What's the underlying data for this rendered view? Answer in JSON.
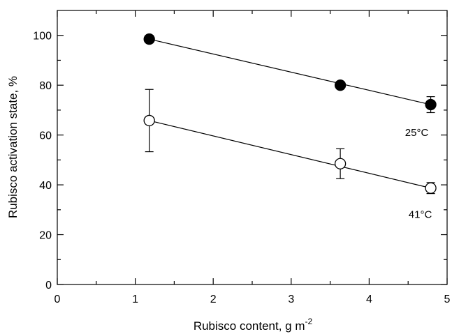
{
  "chart_data": {
    "type": "scatter",
    "title": "",
    "xlabel": "Rubisco content, g m",
    "xlabel_superscript": "-2",
    "ylabel": "Rubisco activation state, %",
    "xlim": [
      0,
      5
    ],
    "ylim": [
      0,
      110
    ],
    "x_ticks": [
      0,
      1,
      2,
      3,
      4,
      5
    ],
    "x_tick_labels": [
      "0",
      "1",
      "2",
      "3",
      "4",
      "5"
    ],
    "y_ticks": [
      0,
      20,
      40,
      60,
      80,
      100
    ],
    "y_tick_labels": [
      "0",
      "20",
      "40",
      "60",
      "80",
      "100"
    ],
    "grid": false,
    "series": [
      {
        "name": "25°C",
        "marker": "filled-circle",
        "color": "#000000",
        "x": [
          1.18,
          3.63,
          4.79
        ],
        "y": [
          98.5,
          80.0,
          72.2
        ],
        "error": [
          1.5,
          0,
          3.2
        ],
        "fit_line": [
          [
            1.18,
            98.5
          ],
          [
            4.79,
            72.2
          ]
        ]
      },
      {
        "name": "41°C",
        "marker": "open-circle",
        "color": "#000000",
        "x": [
          1.18,
          3.63,
          4.79
        ],
        "y": [
          65.8,
          48.5,
          38.7
        ],
        "error": [
          12.5,
          6.0,
          2.2
        ],
        "fit_line": [
          [
            1.18,
            65.8
          ],
          [
            4.79,
            38.7
          ]
        ]
      }
    ]
  }
}
